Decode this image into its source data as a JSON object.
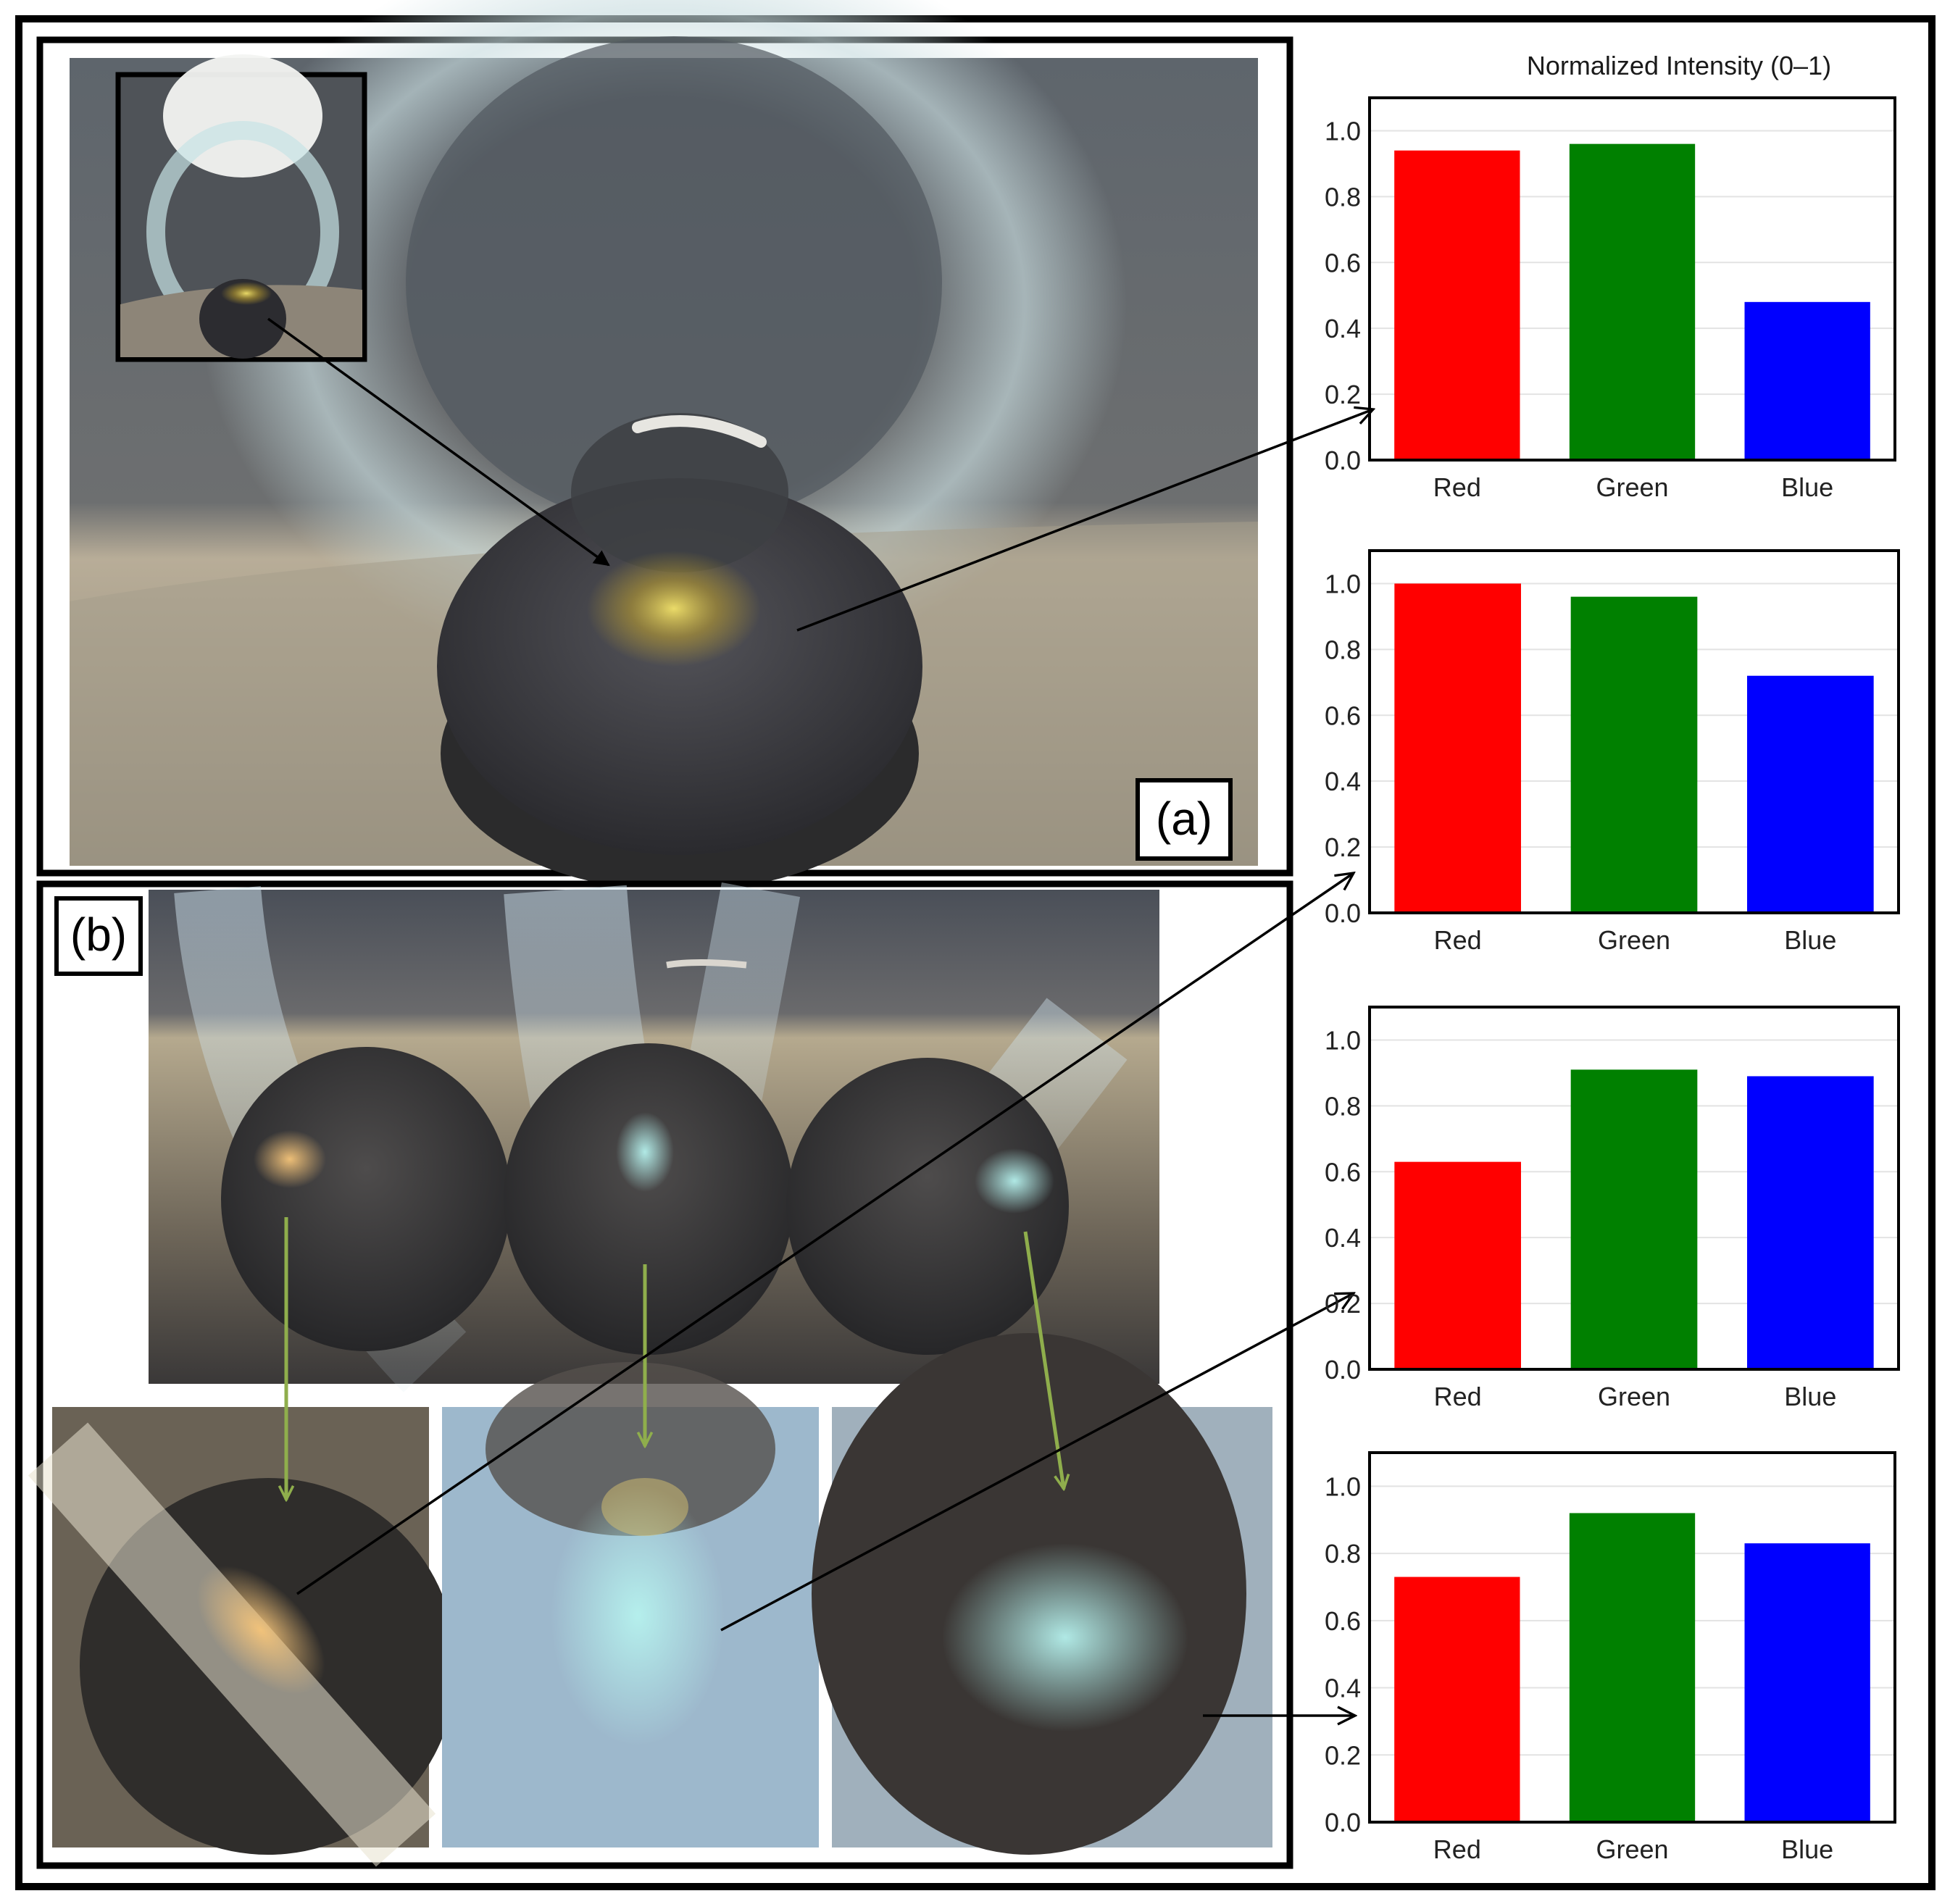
{
  "figure": {
    "panel_a_label": "(a)",
    "panel_b_label": "(b)",
    "intensity_title": "Normalized Intensity (0–1)"
  },
  "colors": {
    "red": "#ff0000",
    "green": "#008000",
    "blue": "#0000ff",
    "frame": "#000000",
    "pointer_arrow": "#8fae4c"
  },
  "chart_data": [
    {
      "type": "bar",
      "title": "Normalized Intensity (0–1)",
      "categories": [
        "Red",
        "Green",
        "Blue"
      ],
      "values": [
        0.94,
        0.96,
        0.48
      ],
      "ylim": [
        0,
        1.1
      ],
      "yticks": [
        "0.0",
        "0.2",
        "0.4",
        "0.6",
        "0.8",
        "1.0"
      ],
      "grid": true
    },
    {
      "type": "bar",
      "categories": [
        "Red",
        "Green",
        "Blue"
      ],
      "values": [
        1.0,
        0.96,
        0.72
      ],
      "ylim": [
        0,
        1.1
      ],
      "yticks": [
        "0.0",
        "0.2",
        "0.4",
        "0.6",
        "0.8",
        "1.0"
      ],
      "grid": true
    },
    {
      "type": "bar",
      "categories": [
        "Red",
        "Green",
        "Blue"
      ],
      "values": [
        0.63,
        0.91,
        0.89
      ],
      "ylim": [
        0,
        1.1
      ],
      "yticks": [
        "0.0",
        "0.2",
        "0.4",
        "0.6",
        "0.8",
        "1.0"
      ],
      "grid": true
    },
    {
      "type": "bar",
      "categories": [
        "Red",
        "Green",
        "Blue"
      ],
      "values": [
        0.73,
        0.92,
        0.83
      ],
      "ylim": [
        0,
        1.1
      ],
      "yticks": [
        "0.0",
        "0.2",
        "0.4",
        "0.6",
        "0.8",
        "1.0"
      ],
      "grid": true
    }
  ]
}
